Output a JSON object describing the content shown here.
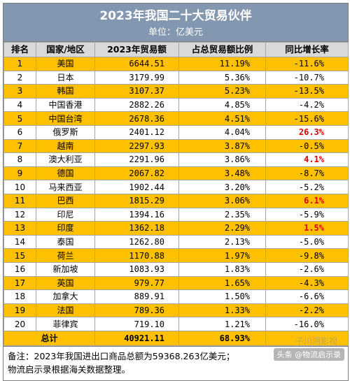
{
  "title": "2023年我国二十大贸易伙伴",
  "subtitle": "单位：亿美元",
  "headers": [
    "排名",
    "国家/地区",
    "2023年贸易额",
    "占总贸易额比例",
    "同比增长率"
  ],
  "rows": [
    {
      "rank": "1",
      "name": "美国",
      "value": "6644.51",
      "share": "11.19%",
      "growth": "-11.6%"
    },
    {
      "rank": "2",
      "name": "日本",
      "value": "3179.99",
      "share": "5.36%",
      "growth": "-10.7%"
    },
    {
      "rank": "3",
      "name": "韩国",
      "value": "3107.37",
      "share": "5.23%",
      "growth": "-13.5%"
    },
    {
      "rank": "4",
      "name": "中国香港",
      "value": "2882.26",
      "share": "4.85%",
      "growth": "-4.2%"
    },
    {
      "rank": "5",
      "name": "中国台湾",
      "value": "2678.36",
      "share": "4.51%",
      "growth": "-15.6%"
    },
    {
      "rank": "6",
      "name": "俄罗斯",
      "value": "2401.12",
      "share": "4.04%",
      "growth": "26.3%"
    },
    {
      "rank": "7",
      "name": "越南",
      "value": "2297.93",
      "share": "3.87%",
      "growth": "-0.5%"
    },
    {
      "rank": "8",
      "name": "澳大利亚",
      "value": "2291.96",
      "share": "3.86%",
      "growth": "4.1%"
    },
    {
      "rank": "9",
      "name": "德国",
      "value": "2067.82",
      "share": "3.48%",
      "growth": "-8.7%"
    },
    {
      "rank": "10",
      "name": "马来西亚",
      "value": "1902.44",
      "share": "3.20%",
      "growth": "-5.2%"
    },
    {
      "rank": "11",
      "name": "巴西",
      "value": "1815.29",
      "share": "3.06%",
      "growth": "6.1%"
    },
    {
      "rank": "12",
      "name": "印尼",
      "value": "1394.16",
      "share": "2.35%",
      "growth": "-5.9%"
    },
    {
      "rank": "13",
      "name": "印度",
      "value": "1362.18",
      "share": "2.29%",
      "growth": "1.5%"
    },
    {
      "rank": "14",
      "name": "泰国",
      "value": "1262.80",
      "share": "2.13%",
      "growth": "-5.0%"
    },
    {
      "rank": "15",
      "name": "荷兰",
      "value": "1170.88",
      "share": "1.97%",
      "growth": "-9.8%"
    },
    {
      "rank": "16",
      "name": "新加坡",
      "value": "1083.93",
      "share": "1.83%",
      "growth": "-2.6%"
    },
    {
      "rank": "17",
      "name": "英国",
      "value": "979.77",
      "share": "1.65%",
      "growth": "-4.3%"
    },
    {
      "rank": "18",
      "name": "加拿大",
      "value": "889.91",
      "share": "1.50%",
      "growth": "-6.6%"
    },
    {
      "rank": "19",
      "name": "法国",
      "value": "789.36",
      "share": "1.33%",
      "growth": "-2.2%"
    },
    {
      "rank": "20",
      "name": "菲律宾",
      "value": "719.10",
      "share": "1.21%",
      "growth": "-16.0%"
    }
  ],
  "total": {
    "label": "总计",
    "value": "40921.11",
    "share": "68.93%"
  },
  "note_line1": "备注：2023年我国进出口商品总额为59368.263亿美元；",
  "note_line2": "物流启示录根据海关数据整理。",
  "watermark": "头条 @物流启示录",
  "watermark_faint": "子川溯影视",
  "colors": {
    "title_bg": "#8497b0",
    "header_bg": "#d9d9d9",
    "highlight_row": "#ffc000",
    "positive_growth": "#e00000"
  }
}
